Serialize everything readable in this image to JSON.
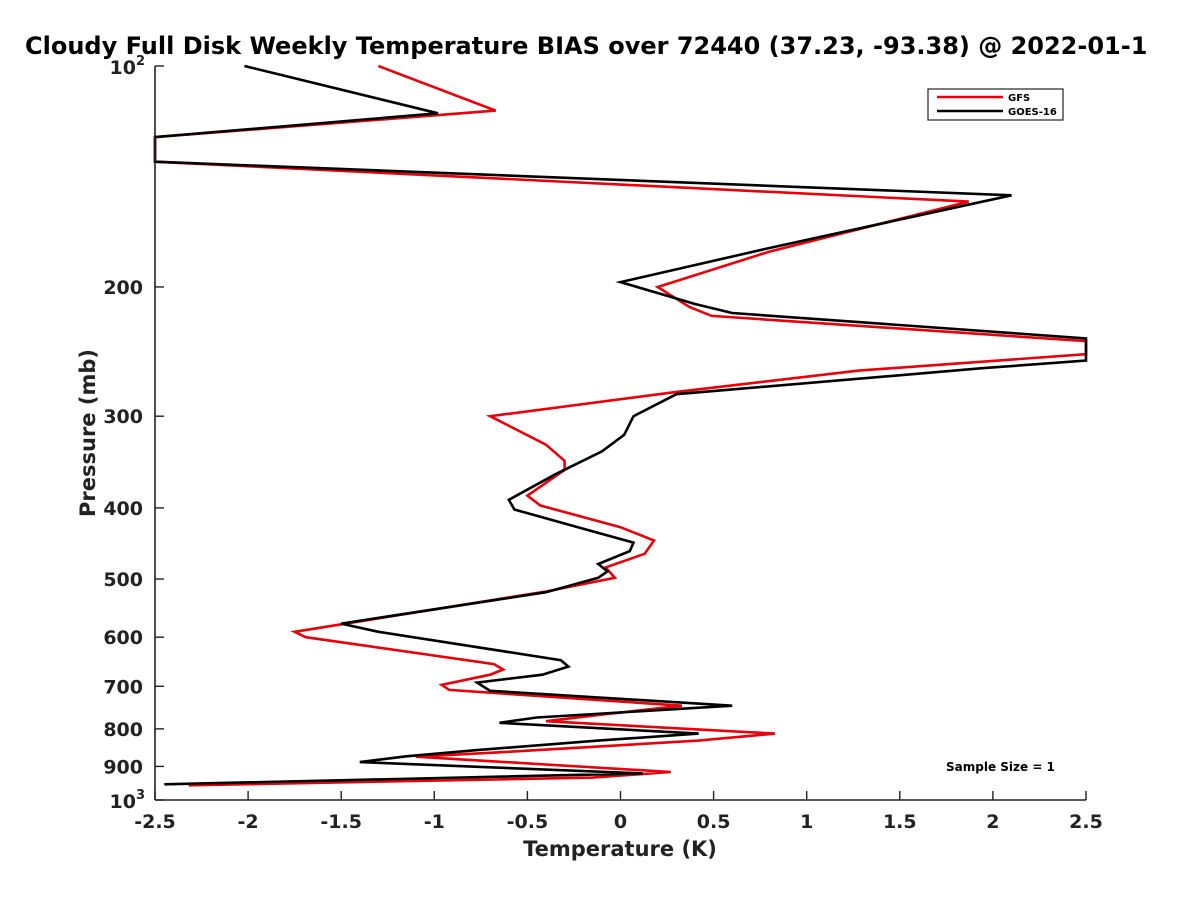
{
  "chart_data": {
    "type": "line",
    "title": "Cloudy Full Disk Weekly Temperature BIAS over 72440 (37.23, -93.38) @ 2022-01-1",
    "xlabel": "Temperature (K)",
    "ylabel": "Pressure (mb)",
    "xlim": [
      -2.5,
      2.5
    ],
    "ylim": [
      100,
      1000
    ],
    "y_scale": "log",
    "y_reversed": true,
    "grid": false,
    "legend_position": "top-right",
    "x_ticks": [
      "-2.5",
      "-2",
      "-1.5",
      "-1",
      "-0.5",
      "0",
      "0.5",
      "1",
      "1.5",
      "2",
      "2.5"
    ],
    "y_ticks": [
      {
        "value": 100,
        "base": "10",
        "exp": "2"
      },
      {
        "value": 200,
        "label": "200"
      },
      {
        "value": 300,
        "label": "300"
      },
      {
        "value": 400,
        "label": "400"
      },
      {
        "value": 500,
        "label": "500"
      },
      {
        "value": 600,
        "label": "600"
      },
      {
        "value": 700,
        "label": "700"
      },
      {
        "value": 800,
        "label": "800"
      },
      {
        "value": 900,
        "label": "900"
      },
      {
        "value": 1000,
        "base": "10",
        "exp": "3"
      }
    ],
    "annotation": "Sample Size = 1",
    "series": [
      {
        "name": "GFS",
        "color": "#e8000b",
        "points": [
          [
            -1.3,
            100
          ],
          [
            -0.67,
            115
          ],
          [
            -2.5,
            125
          ],
          [
            -2.5,
            135
          ],
          [
            1.87,
            153
          ],
          [
            0.8,
            179
          ],
          [
            0.2,
            200
          ],
          [
            0.37,
            213
          ],
          [
            0.49,
            219
          ],
          [
            2.5,
            237
          ],
          [
            2.5,
            247
          ],
          [
            1.28,
            260
          ],
          [
            0.3,
            278
          ],
          [
            -0.7,
            300
          ],
          [
            -0.4,
            328
          ],
          [
            -0.3,
            345
          ],
          [
            -0.3,
            355
          ],
          [
            -0.5,
            385
          ],
          [
            -0.43,
            397
          ],
          [
            0.0,
            425
          ],
          [
            0.18,
            443
          ],
          [
            0.13,
            462
          ],
          [
            -0.08,
            482
          ],
          [
            -0.03,
            498
          ],
          [
            -0.4,
            520
          ],
          [
            -1.75,
            590
          ],
          [
            -1.69,
            600
          ],
          [
            -0.68,
            653
          ],
          [
            -0.63,
            664
          ],
          [
            -0.7,
            675
          ],
          [
            -0.96,
            697
          ],
          [
            -0.92,
            708
          ],
          [
            0.33,
            744
          ],
          [
            -0.1,
            765
          ],
          [
            -0.4,
            781
          ],
          [
            0.83,
            812
          ],
          [
            0.42,
            830
          ],
          [
            -0.65,
            861
          ],
          [
            -1.1,
            873
          ],
          [
            0.27,
            916
          ],
          [
            -0.15,
            932
          ],
          [
            -2.32,
            955
          ]
        ]
      },
      {
        "name": "GOES-16",
        "color": "#000000",
        "points": [
          [
            -2.02,
            100
          ],
          [
            -0.98,
            116
          ],
          [
            -2.5,
            125
          ],
          [
            -2.5,
            135
          ],
          [
            2.1,
            150
          ],
          [
            0.8,
            177
          ],
          [
            0.0,
            197
          ],
          [
            0.4,
            211
          ],
          [
            0.6,
            217
          ],
          [
            2.5,
            235
          ],
          [
            2.5,
            252
          ],
          [
            1.95,
            258
          ],
          [
            0.3,
            280
          ],
          [
            0.07,
            300
          ],
          [
            0.02,
            318
          ],
          [
            -0.1,
            335
          ],
          [
            -0.35,
            360
          ],
          [
            -0.6,
            390
          ],
          [
            -0.57,
            402
          ],
          [
            -0.2,
            427
          ],
          [
            0.07,
            446
          ],
          [
            0.05,
            458
          ],
          [
            -0.12,
            477
          ],
          [
            -0.07,
            488
          ],
          [
            -0.12,
            498
          ],
          [
            -0.4,
            521
          ],
          [
            -1.5,
            575
          ],
          [
            -1.3,
            590
          ],
          [
            -0.32,
            645
          ],
          [
            -0.28,
            658
          ],
          [
            -0.42,
            675
          ],
          [
            -0.77,
            692
          ],
          [
            -0.7,
            710
          ],
          [
            0.6,
            744
          ],
          [
            -0.45,
            772
          ],
          [
            -0.65,
            785
          ],
          [
            0.42,
            812
          ],
          [
            -0.12,
            830
          ],
          [
            -0.77,
            855
          ],
          [
            -1.15,
            872
          ],
          [
            -1.4,
            888
          ],
          [
            0.12,
            920
          ],
          [
            -2.45,
            952
          ]
        ]
      }
    ]
  }
}
